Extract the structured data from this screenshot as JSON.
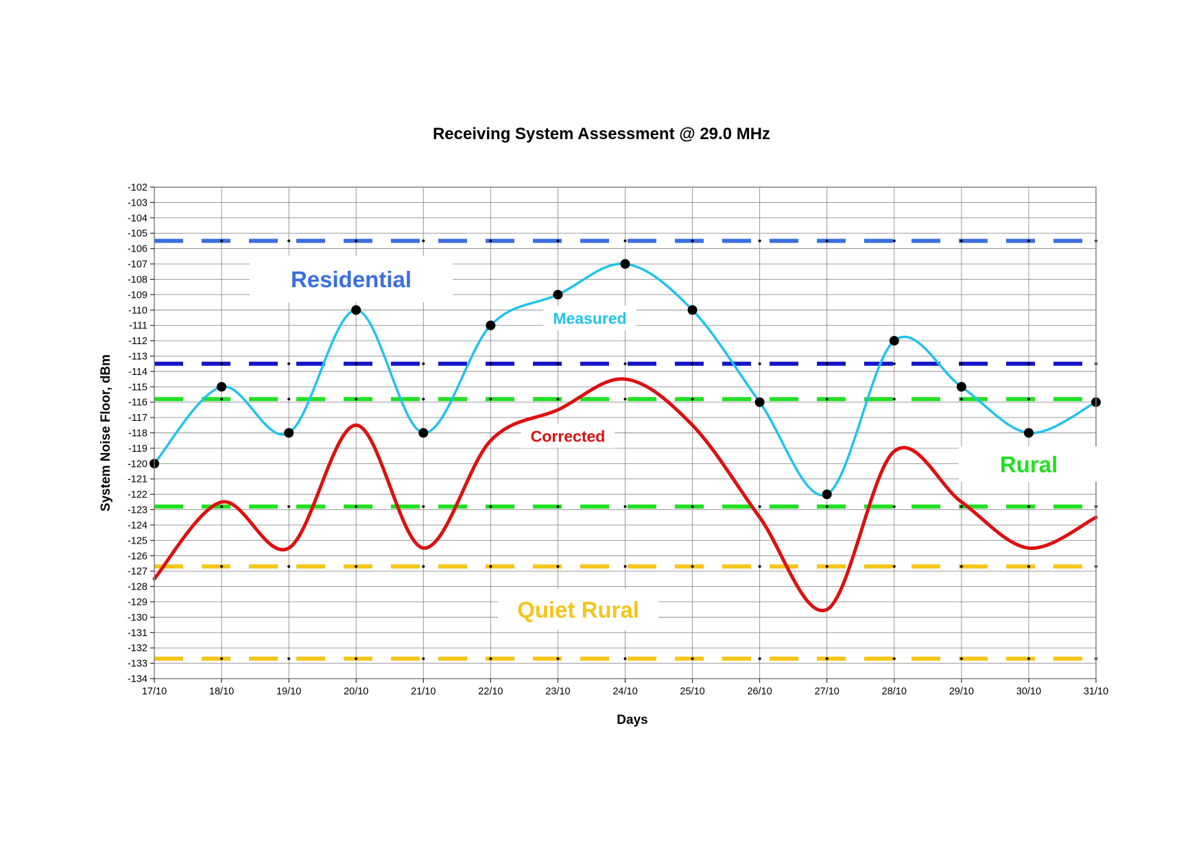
{
  "chart_data": {
    "type": "line",
    "title": "Receiving System Assessment @ 29.0  MHz",
    "xlabel": "Days",
    "ylabel": "System Noise Floor, dBm",
    "categories": [
      "17/10",
      "18/10",
      "19/10",
      "20/10",
      "21/10",
      "22/10",
      "23/10",
      "24/10",
      "25/10",
      "26/10",
      "27/10",
      "28/10",
      "29/10",
      "30/10",
      "31/10"
    ],
    "ylim": [
      -134,
      -102
    ],
    "yticks": [
      "-102",
      "-103",
      "-104",
      "-105",
      "-106",
      "-107",
      "-108",
      "-109",
      "-110",
      "-111",
      "-112",
      "-113",
      "-114",
      "-115",
      "-116",
      "-117",
      "-118",
      "-119",
      "-120",
      "-121",
      "-122",
      "-123",
      "-124",
      "-125",
      "-126",
      "-127",
      "-128",
      "-129",
      "-130",
      "-131",
      "-132",
      "-133",
      "-134"
    ],
    "grid": true,
    "series": [
      {
        "name": "Measured",
        "color": "#1ec3eb",
        "markers": true,
        "values": [
          -120,
          -115,
          -118,
          -110,
          -118,
          -111,
          -109,
          -107,
          -110,
          -116,
          -122,
          -112,
          -115,
          -118,
          -116
        ]
      },
      {
        "name": "Corrected",
        "color": "#dd1010",
        "markers": false,
        "values": [
          -127.5,
          -122.5,
          -125.5,
          -117.5,
          -125.5,
          -118.5,
          -116.5,
          -114.5,
          -117.5,
          -123.5,
          -129.5,
          -119.2,
          -122.5,
          -125.5,
          -123.5
        ]
      }
    ],
    "reference_lines": [
      {
        "value": -105.5,
        "color": "#3a6fe0"
      },
      {
        "value": -113.5,
        "color": "#1515c8"
      },
      {
        "value": -115.8,
        "color": "#22e022"
      },
      {
        "value": -122.8,
        "color": "#22e022"
      },
      {
        "value": -126.7,
        "color": "#f5c518"
      },
      {
        "value": -132.7,
        "color": "#f5c518"
      }
    ],
    "zone_labels": [
      {
        "text": "Residential",
        "color": "#3a6fe0"
      },
      {
        "text": "Rural",
        "color": "#22e022"
      },
      {
        "text": "Quiet Rural",
        "color": "#f5c518"
      }
    ]
  }
}
